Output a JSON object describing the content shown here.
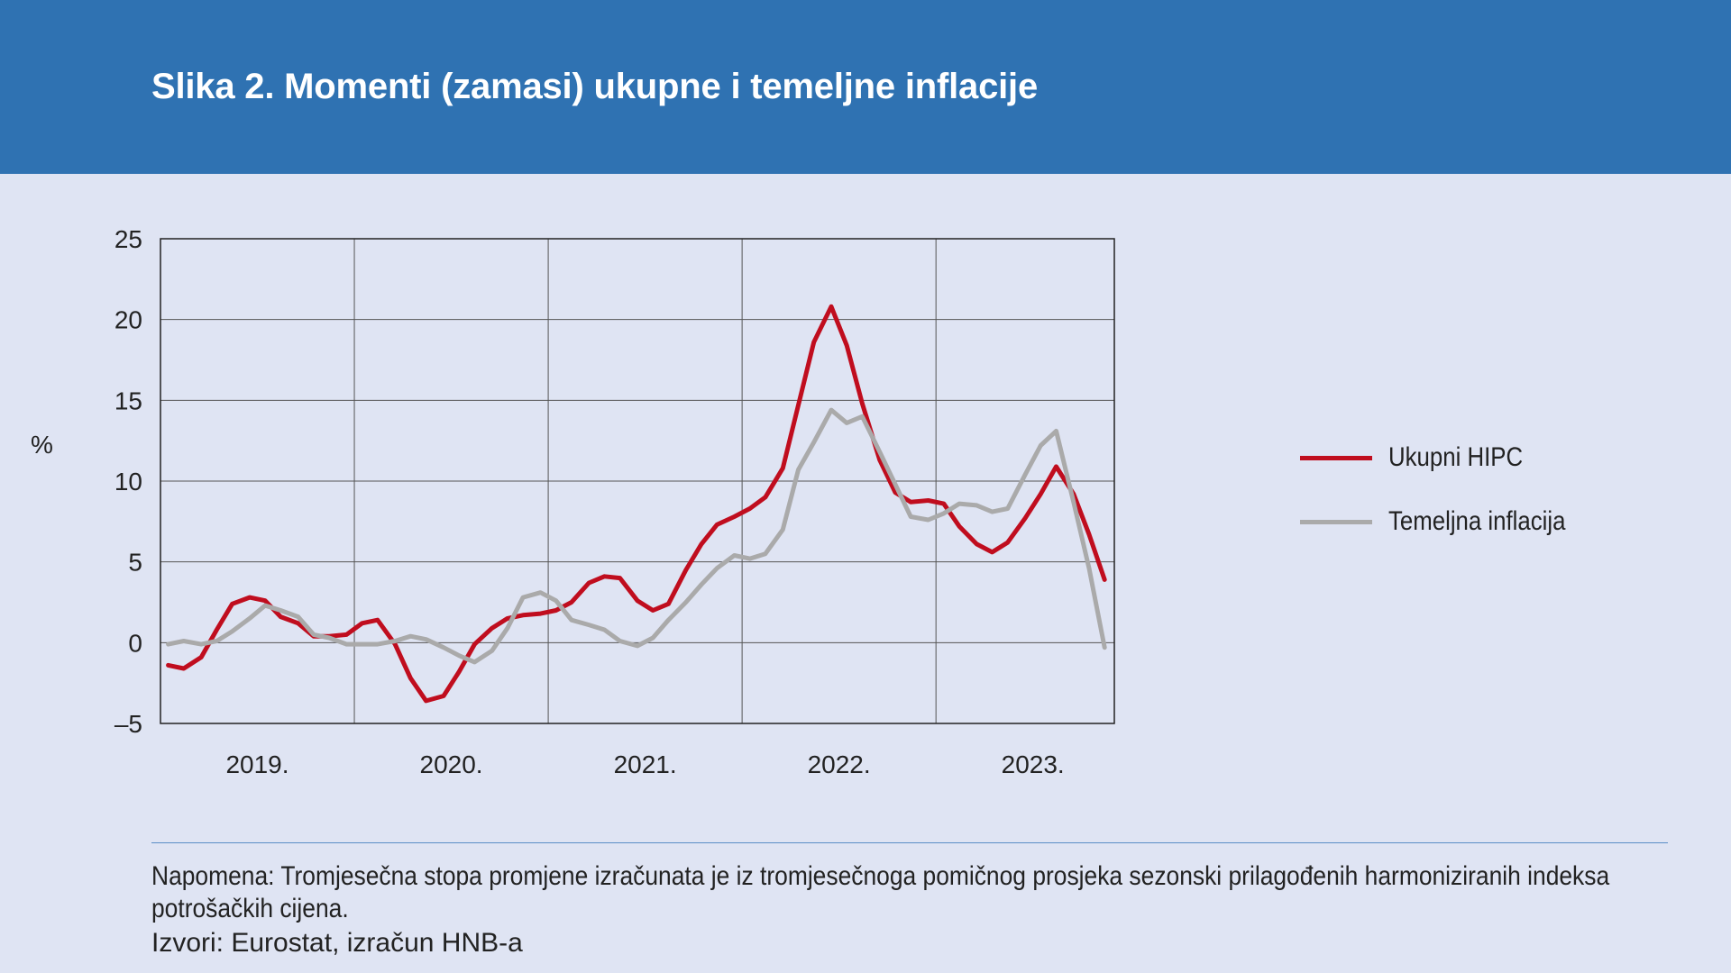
{
  "title": "Slika 2. Momenti (zamasi) ukupne i temeljne inflacije",
  "note": "Napomena: Tromjesečna stopa promjene izračunata je iz tromjesečnoga pomičnog prosjeka sezonski prilagođenih harmoniziranih indeksa potrošačkih cijena.",
  "source": "Izvori: Eurostat, izračun HNB-a",
  "colors": {
    "header": "#2f72b2",
    "background": "#dfe4f3",
    "ukupni": "#c00d1e",
    "temeljna": "#aaaaaa"
  },
  "chart_data": {
    "type": "line",
    "ylabel": "%",
    "ylim": [
      -5,
      25
    ],
    "yticks": [
      25,
      20,
      15,
      10,
      5,
      0,
      -5
    ],
    "xlim": [
      2018.5,
      2023.42
    ],
    "year_labels": [
      "2019.",
      "2020.",
      "2021.",
      "2022.",
      "2023."
    ],
    "grid": true,
    "legend_position": "right",
    "series": [
      {
        "name": "Ukupni HIPC",
        "color": "#c00d1e",
        "points": [
          [
            2018.54,
            -1.4
          ],
          [
            2018.62,
            -1.6
          ],
          [
            2018.71,
            -0.9
          ],
          [
            2018.79,
            0.8
          ],
          [
            2018.87,
            2.4
          ],
          [
            2018.96,
            2.8
          ],
          [
            2019.04,
            2.6
          ],
          [
            2019.12,
            1.6
          ],
          [
            2019.21,
            1.2
          ],
          [
            2019.29,
            0.4
          ],
          [
            2019.37,
            0.4
          ],
          [
            2019.46,
            0.5
          ],
          [
            2019.54,
            1.2
          ],
          [
            2019.62,
            1.4
          ],
          [
            2019.71,
            -0.1
          ],
          [
            2019.79,
            -2.2
          ],
          [
            2019.87,
            -3.6
          ],
          [
            2019.96,
            -3.3
          ],
          [
            2020.04,
            -1.8
          ],
          [
            2020.12,
            -0.1
          ],
          [
            2020.21,
            0.9
          ],
          [
            2020.29,
            1.5
          ],
          [
            2020.37,
            1.7
          ],
          [
            2020.46,
            1.8
          ],
          [
            2020.54,
            2.0
          ],
          [
            2020.62,
            2.5
          ],
          [
            2020.71,
            3.7
          ],
          [
            2020.79,
            4.1
          ],
          [
            2020.87,
            4.0
          ],
          [
            2020.96,
            2.6
          ],
          [
            2021.04,
            2.0
          ],
          [
            2021.12,
            2.4
          ],
          [
            2021.21,
            4.5
          ],
          [
            2021.29,
            6.1
          ],
          [
            2021.37,
            7.3
          ],
          [
            2021.46,
            7.8
          ],
          [
            2021.54,
            8.3
          ],
          [
            2021.62,
            9.0
          ],
          [
            2021.71,
            10.8
          ],
          [
            2021.79,
            14.7
          ],
          [
            2021.87,
            18.6
          ],
          [
            2021.96,
            20.8
          ],
          [
            2022.04,
            18.4
          ],
          [
            2022.12,
            14.8
          ],
          [
            2022.21,
            11.3
          ],
          [
            2022.29,
            9.3
          ],
          [
            2022.37,
            8.7
          ],
          [
            2022.46,
            8.8
          ],
          [
            2022.54,
            8.6
          ],
          [
            2022.62,
            7.2
          ],
          [
            2022.71,
            6.1
          ],
          [
            2022.79,
            5.6
          ],
          [
            2022.87,
            6.2
          ],
          [
            2022.96,
            7.7
          ],
          [
            2023.04,
            9.2
          ],
          [
            2023.12,
            10.9
          ],
          [
            2023.21,
            9.2
          ],
          [
            2023.29,
            6.7
          ],
          [
            2023.37,
            3.9
          ]
        ]
      },
      {
        "name": "Temeljna inflacija",
        "color": "#aaaaaa",
        "points": [
          [
            2018.54,
            -0.1
          ],
          [
            2018.62,
            0.1
          ],
          [
            2018.71,
            -0.1
          ],
          [
            2018.79,
            0.1
          ],
          [
            2018.87,
            0.7
          ],
          [
            2018.96,
            1.5
          ],
          [
            2019.04,
            2.3
          ],
          [
            2019.12,
            2.0
          ],
          [
            2019.21,
            1.6
          ],
          [
            2019.29,
            0.5
          ],
          [
            2019.37,
            0.3
          ],
          [
            2019.46,
            -0.1
          ],
          [
            2019.54,
            -0.1
          ],
          [
            2019.62,
            -0.1
          ],
          [
            2019.71,
            0.1
          ],
          [
            2019.79,
            0.4
          ],
          [
            2019.87,
            0.2
          ],
          [
            2019.96,
            -0.3
          ],
          [
            2020.04,
            -0.8
          ],
          [
            2020.12,
            -1.2
          ],
          [
            2020.21,
            -0.5
          ],
          [
            2020.29,
            0.9
          ],
          [
            2020.37,
            2.8
          ],
          [
            2020.46,
            3.1
          ],
          [
            2020.54,
            2.6
          ],
          [
            2020.62,
            1.4
          ],
          [
            2020.71,
            1.1
          ],
          [
            2020.79,
            0.8
          ],
          [
            2020.87,
            0.1
          ],
          [
            2020.96,
            -0.2
          ],
          [
            2021.04,
            0.3
          ],
          [
            2021.12,
            1.4
          ],
          [
            2021.21,
            2.5
          ],
          [
            2021.29,
            3.6
          ],
          [
            2021.37,
            4.6
          ],
          [
            2021.46,
            5.4
          ],
          [
            2021.54,
            5.2
          ],
          [
            2021.62,
            5.5
          ],
          [
            2021.71,
            7.0
          ],
          [
            2021.79,
            10.7
          ],
          [
            2021.87,
            12.4
          ],
          [
            2021.96,
            14.4
          ],
          [
            2022.04,
            13.6
          ],
          [
            2022.12,
            14.0
          ],
          [
            2022.21,
            11.8
          ],
          [
            2022.29,
            9.8
          ],
          [
            2022.37,
            7.8
          ],
          [
            2022.46,
            7.6
          ],
          [
            2022.54,
            8.0
          ],
          [
            2022.62,
            8.6
          ],
          [
            2022.71,
            8.5
          ],
          [
            2022.79,
            8.1
          ],
          [
            2022.87,
            8.3
          ],
          [
            2022.96,
            10.4
          ],
          [
            2023.04,
            12.2
          ],
          [
            2023.12,
            13.1
          ],
          [
            2023.21,
            8.7
          ],
          [
            2023.29,
            4.6
          ],
          [
            2023.37,
            -0.3
          ]
        ]
      }
    ]
  }
}
